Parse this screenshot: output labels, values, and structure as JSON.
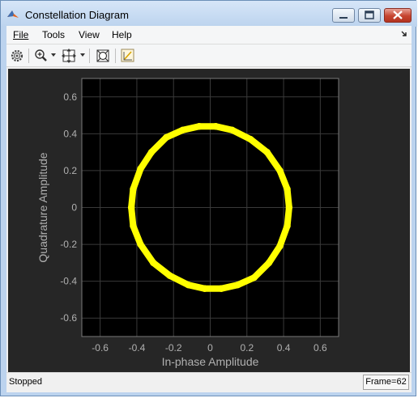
{
  "window": {
    "title": "Constellation Diagram",
    "app_icon": "matlab-icon",
    "controls": [
      "minimize-icon",
      "maximize-icon",
      "close-icon"
    ]
  },
  "menu": {
    "items": [
      {
        "label": "File",
        "mnemonic": "F"
      },
      {
        "label": "Tools",
        "mnemonic": "T"
      },
      {
        "label": "View",
        "mnemonic": "V"
      },
      {
        "label": "Help",
        "mnemonic": "H"
      }
    ],
    "dock_icon": "dock-arrow-icon"
  },
  "toolbar": {
    "buttons": [
      "settings-gear-icon",
      "zoom-in-icon",
      "scale-axes-icon",
      "autoscale-icon",
      "reference-constellation-icon"
    ]
  },
  "chart_data": {
    "type": "scatter",
    "title": "",
    "xlabel": "In-phase Amplitude",
    "ylabel": "Quadrature Amplitude",
    "xlim": [
      -0.7,
      0.7
    ],
    "ylim": [
      -0.7,
      0.7
    ],
    "xticks": [
      -0.6,
      -0.4,
      -0.2,
      0,
      0.2,
      0.4,
      0.6
    ],
    "yticks": [
      -0.6,
      -0.4,
      -0.2,
      0,
      0.2,
      0.4,
      0.6
    ],
    "xtick_labels": [
      "-0.6",
      "-0.4",
      "-0.2",
      "0",
      "0.2",
      "0.4",
      "0.6"
    ],
    "ytick_labels": [
      "-0.6",
      "-0.4",
      "-0.2",
      "0",
      "0.2",
      "0.4",
      "0.6"
    ],
    "grid": true,
    "series": [
      {
        "color": "#ffff00",
        "shape": "closed rounded-square ring",
        "x": [
          0.43,
          0.42,
          0.38,
          0.31,
          0.22,
          0.12,
          0.03,
          -0.06,
          -0.15,
          -0.24,
          -0.32,
          -0.38,
          -0.42,
          -0.43,
          -0.42,
          -0.38,
          -0.31,
          -0.22,
          -0.12,
          -0.03,
          0.06,
          0.15,
          0.24,
          0.32,
          0.38,
          0.42
        ],
        "y": [
          0.0,
          0.1,
          0.2,
          0.3,
          0.37,
          0.42,
          0.44,
          0.44,
          0.42,
          0.38,
          0.3,
          0.21,
          0.1,
          0.0,
          -0.1,
          -0.2,
          -0.3,
          -0.37,
          -0.42,
          -0.44,
          -0.44,
          -0.42,
          -0.38,
          -0.3,
          -0.21,
          -0.1
        ]
      }
    ]
  },
  "status": {
    "text": "Stopped",
    "frame": "Frame=62"
  },
  "colors": {
    "trace": "#ffff00",
    "axes_background": "#000000",
    "panel_background": "#262626",
    "grid": "#3a3a3a",
    "label_text": "#b0b0b0"
  }
}
